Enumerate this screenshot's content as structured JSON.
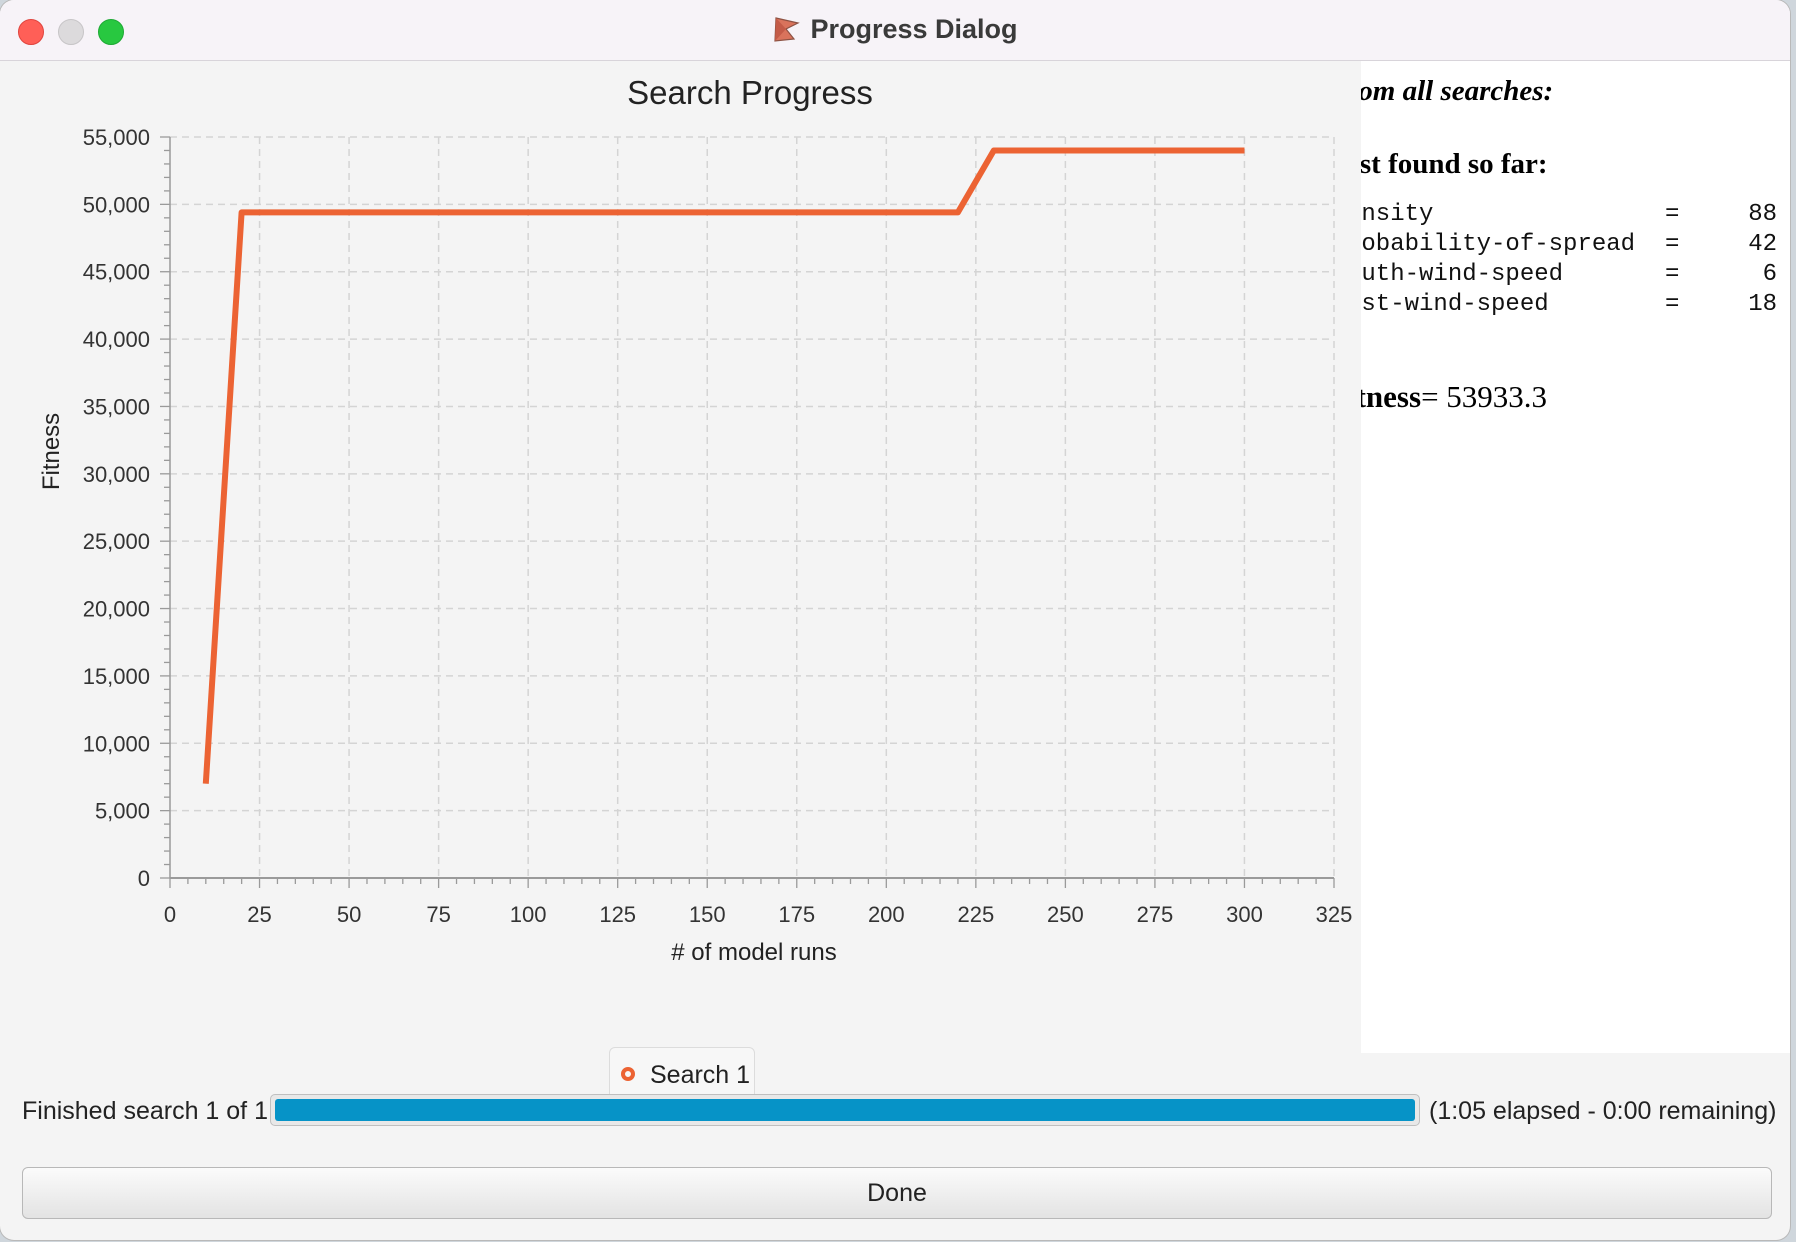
{
  "window": {
    "title": "Progress Dialog"
  },
  "results_panel": {
    "heading": "rom all searches:",
    "subheading": "est found so far:",
    "params": [
      {
        "name": "ensity",
        "eq": "=",
        "value": "88"
      },
      {
        "name": "robability-of-spread",
        "eq": "=",
        "value": "42"
      },
      {
        "name": "outh-wind-speed",
        "eq": "=",
        "value": "6"
      },
      {
        "name": "est-wind-speed",
        "eq": "=",
        "value": "18"
      }
    ],
    "fitness_label": "itness",
    "fitness_value": "= 53933.3"
  },
  "status": {
    "label": "Finished search 1 of 1:",
    "progress": 1.0,
    "elapsed_text": "(1:05 elapsed - 0:00 remaining)"
  },
  "done_button": {
    "label": "Done"
  },
  "colors": {
    "series": "#ec6333",
    "progress_fill": "#0693c7"
  },
  "chart_data": {
    "type": "line",
    "title": "Search Progress",
    "xlabel": "# of model runs",
    "ylabel": "Fitness",
    "xlim": [
      0,
      325
    ],
    "ylim": [
      0,
      55000
    ],
    "x_ticks": [
      0,
      25,
      50,
      75,
      100,
      125,
      150,
      175,
      200,
      225,
      250,
      275,
      300,
      325
    ],
    "x_tick_labels": [
      "0",
      "25",
      "50",
      "75",
      "100",
      "125",
      "150",
      "175",
      "200",
      "225",
      "250",
      "275",
      "300",
      "325"
    ],
    "y_ticks": [
      0,
      5000,
      10000,
      15000,
      20000,
      25000,
      30000,
      35000,
      40000,
      45000,
      50000,
      55000
    ],
    "y_tick_labels": [
      "0",
      "5,000",
      "10,000",
      "15,000",
      "20,000",
      "25,000",
      "30,000",
      "35,000",
      "40,000",
      "45,000",
      "50,000",
      "55,000"
    ],
    "grid": true,
    "legend": "bottom-center",
    "series": [
      {
        "name": "Search 1",
        "color": "#ec6333",
        "x": [
          10,
          20,
          220,
          230,
          300
        ],
        "y": [
          7000,
          49400,
          49400,
          54000,
          54000
        ]
      }
    ]
  }
}
